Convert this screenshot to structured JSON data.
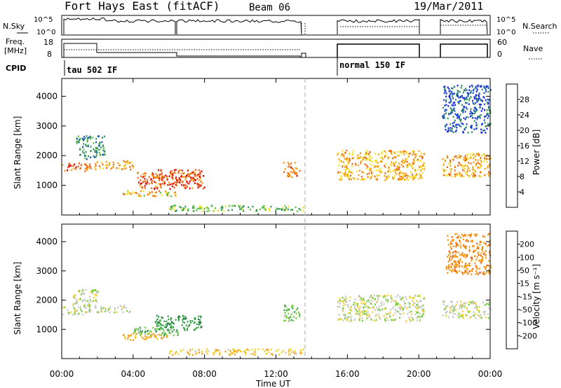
{
  "header": {
    "station": "Fort Hays East (fitACF)",
    "beam": "Beam 06",
    "date": "19/Mar/2011"
  },
  "strip_labels": {
    "nsky": "N.Sky",
    "freq_top": "Freq.",
    "freq_unit": "[MHz]",
    "cpid": "CPID",
    "nsearch": "N.Search",
    "nave": "Nave"
  },
  "strip_ticks": {
    "noise_left": [
      "10^5",
      "10^0"
    ],
    "noise_right": [
      "10^5",
      "10^0"
    ],
    "freq_left": [
      "18",
      "8"
    ],
    "nave_right": [
      "60",
      "0"
    ]
  },
  "cpid_modes": [
    "tau 502 IF",
    "normal 150 IF"
  ],
  "axes": {
    "x_ticks": [
      "00:00",
      "04:00",
      "08:00",
      "12:00",
      "16:00",
      "20:00",
      "00:00"
    ],
    "x_label": "Time UT",
    "y_ticks": [
      "1000",
      "2000",
      "3000",
      "4000"
    ],
    "y_label": "Slant Range [km]"
  },
  "colorbar_power": {
    "label": "Power [dB]",
    "ticks": [
      "4",
      "8",
      "12",
      "16",
      "20",
      "24",
      "28"
    ],
    "colors": [
      "#1020e0",
      "#1e50c8",
      "#2f8f5a",
      "#55c03a",
      "#f5e020",
      "#f59a10",
      "#f06010",
      "#e00000"
    ]
  },
  "colorbar_velocity": {
    "label": "Velocity [m s⁻¹]",
    "ticks": [
      "200",
      "100",
      "50",
      "15",
      "-15",
      "-50",
      "-100",
      "-200"
    ],
    "colors": [
      "#1020c0",
      "#1e6a3a",
      "#2fa040",
      "#70d030",
      "#c8c8c0",
      "#f5d020",
      "#f59a10",
      "#f06010",
      "#e00000"
    ]
  },
  "chart_data": [
    {
      "type": "heatmap",
      "title": "Power",
      "xlabel": "",
      "ylabel": "Slant Range [km]",
      "xlim": [
        0,
        24
      ],
      "ylim": [
        0,
        4600
      ],
      "colorbar_range": [
        0,
        32
      ],
      "regions": [
        {
          "t0": 0.0,
          "t1": 1.6,
          "r0": 1500,
          "r1": 1800,
          "value": 26
        },
        {
          "t0": 0.8,
          "t1": 2.4,
          "r0": 1900,
          "r1": 2700,
          "value": 10
        },
        {
          "t0": 1.8,
          "t1": 4.0,
          "r0": 1550,
          "r1": 1850,
          "value": 22
        },
        {
          "t0": 4.2,
          "t1": 8.0,
          "r0": 900,
          "r1": 1450,
          "value": 27
        },
        {
          "t0": 3.4,
          "t1": 6.5,
          "r0": 650,
          "r1": 850,
          "value": 20
        },
        {
          "t0": 5.0,
          "t1": 7.8,
          "r0": 1250,
          "r1": 1550,
          "value": 26
        },
        {
          "t0": 12.4,
          "t1": 13.3,
          "r0": 1300,
          "r1": 1800,
          "value": 24
        },
        {
          "t0": 15.4,
          "t1": 20.3,
          "r0": 1200,
          "r1": 2200,
          "value": 21
        },
        {
          "t0": 21.3,
          "t1": 24.0,
          "r0": 1300,
          "r1": 2100,
          "value": 22
        },
        {
          "t0": 21.3,
          "t1": 24.0,
          "r0": 2800,
          "r1": 4400,
          "value": 6
        },
        {
          "t0": 6.0,
          "t1": 13.5,
          "r0": 150,
          "r1": 350,
          "value": 14
        }
      ]
    },
    {
      "type": "heatmap",
      "title": "Velocity",
      "xlabel": "Time UT",
      "ylabel": "Slant Range [km]",
      "xlim": [
        0,
        24
      ],
      "ylim": [
        0,
        4600
      ],
      "colorbar_range": [
        -250,
        250
      ],
      "regions": [
        {
          "t0": 0.0,
          "t1": 1.6,
          "r0": 1500,
          "r1": 1800,
          "value": 0
        },
        {
          "t0": 0.6,
          "t1": 2.0,
          "r0": 1800,
          "r1": 2400,
          "value": 0
        },
        {
          "t0": 1.8,
          "t1": 3.8,
          "r0": 1600,
          "r1": 1850,
          "value": 0
        },
        {
          "t0": 3.4,
          "t1": 6.0,
          "r0": 650,
          "r1": 900,
          "value": -70
        },
        {
          "t0": 4.0,
          "t1": 6.5,
          "r0": 800,
          "r1": 1100,
          "value": 40
        },
        {
          "t0": 5.2,
          "t1": 7.8,
          "r0": 1000,
          "r1": 1500,
          "value": 80
        },
        {
          "t0": 12.4,
          "t1": 13.3,
          "r0": 1300,
          "r1": 1900,
          "value": 40
        },
        {
          "t0": 15.4,
          "t1": 20.3,
          "r0": 1300,
          "r1": 2200,
          "value": 0
        },
        {
          "t0": 21.3,
          "t1": 24.0,
          "r0": 1400,
          "r1": 2000,
          "value": 0
        },
        {
          "t0": 21.5,
          "t1": 24.0,
          "r0": 2900,
          "r1": 4300,
          "value": -90
        },
        {
          "t0": 6.0,
          "t1": 13.5,
          "r0": 150,
          "r1": 350,
          "value": -40
        }
      ]
    }
  ]
}
